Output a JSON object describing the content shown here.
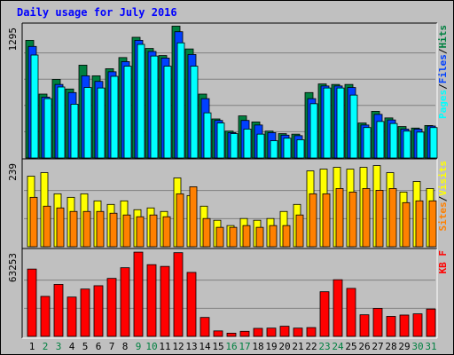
{
  "title": "Daily usage for July 2016",
  "colors": {
    "hits": "#008040",
    "files": "#0040ff",
    "pages": "#00ffff",
    "visits": "#ffff00",
    "sites": "#ff8000",
    "kbytes": "#ff0000",
    "day_label": "#000000",
    "weekend_label": "#008040"
  },
  "chart_data": [
    {
      "type": "bar",
      "name": "hits-files-pages",
      "categories": [
        "1",
        "2",
        "3",
        "4",
        "5",
        "6",
        "7",
        "8",
        "9",
        "10",
        "11",
        "12",
        "13",
        "14",
        "15",
        "16",
        "17",
        "18",
        "19",
        "20",
        "21",
        "22",
        "23",
        "24",
        "25",
        "26",
        "27",
        "28",
        "29",
        "30",
        "31"
      ],
      "y_max_label": "1295",
      "ylim": [
        0,
        1295
      ],
      "legend": [
        {
          "key": "pages",
          "label": "Pages"
        },
        {
          "key": "sep1",
          "label": "/"
        },
        {
          "key": "files",
          "label": "Files"
        },
        {
          "key": "sep2",
          "label": "/"
        },
        {
          "key": "hits",
          "label": "Hits"
        }
      ],
      "series": [
        {
          "name": "Hits",
          "values": [
            1160,
            630,
            775,
            680,
            915,
            810,
            880,
            990,
            1190,
            1080,
            1010,
            1300,
            1075,
            630,
            385,
            265,
            415,
            355,
            265,
            240,
            235,
            645,
            730,
            725,
            725,
            345,
            460,
            395,
            310,
            295,
            320
          ]
        },
        {
          "name": "Files",
          "values": [
            1100,
            600,
            725,
            645,
            810,
            755,
            850,
            950,
            1160,
            1050,
            985,
            1245,
            1020,
            585,
            370,
            250,
            370,
            325,
            250,
            225,
            220,
            585,
            710,
            710,
            695,
            325,
            430,
            375,
            285,
            285,
            315
          ]
        },
        {
          "name": "Pages",
          "values": [
            1015,
            585,
            700,
            530,
            695,
            690,
            805,
            905,
            1120,
            1005,
            905,
            1135,
            905,
            445,
            345,
            240,
            285,
            235,
            170,
            195,
            180,
            535,
            690,
            690,
            620,
            300,
            360,
            340,
            265,
            255,
            300
          ]
        }
      ]
    },
    {
      "type": "bar",
      "name": "visits-sites",
      "categories": [
        "1",
        "2",
        "3",
        "4",
        "5",
        "6",
        "7",
        "8",
        "9",
        "10",
        "11",
        "12",
        "13",
        "14",
        "15",
        "16",
        "17",
        "18",
        "19",
        "20",
        "21",
        "22",
        "23",
        "24",
        "25",
        "26",
        "27",
        "28",
        "29",
        "30",
        "31"
      ],
      "y_max_label": "239",
      "ylim": [
        0,
        239
      ],
      "legend": [
        {
          "key": "sites",
          "label": "Sites"
        },
        {
          "key": "sep",
          "label": "/"
        },
        {
          "key": "visits",
          "label": "Visits"
        }
      ],
      "series": [
        {
          "name": "Visits",
          "values": [
            200,
            210,
            150,
            140,
            150,
            130,
            120,
            130,
            105,
            110,
            100,
            195,
            145,
            115,
            75,
            60,
            80,
            75,
            80,
            100,
            120,
            215,
            220,
            225,
            220,
            225,
            230,
            210,
            155,
            185,
            165
          ]
        },
        {
          "name": "Sites",
          "values": [
            140,
            115,
            110,
            100,
            100,
            100,
            95,
            90,
            85,
            90,
            85,
            150,
            170,
            80,
            55,
            55,
            60,
            55,
            60,
            60,
            90,
            150,
            150,
            165,
            155,
            165,
            160,
            165,
            125,
            130,
            130
          ]
        }
      ]
    },
    {
      "type": "bar",
      "name": "kbytes",
      "categories": [
        "1",
        "2",
        "3",
        "4",
        "5",
        "6",
        "7",
        "8",
        "9",
        "10",
        "11",
        "12",
        "13",
        "14",
        "15",
        "16",
        "17",
        "18",
        "19",
        "20",
        "21",
        "22",
        "23",
        "24",
        "25",
        "26",
        "27",
        "28",
        "29",
        "30",
        "31"
      ],
      "y_max_label": "63253",
      "ylim": [
        0,
        63253
      ],
      "legend": [
        {
          "key": "kbytes",
          "label": "KB F"
        }
      ],
      "series": [
        {
          "name": "KB F",
          "values": [
            50500,
            30000,
            39000,
            29500,
            35500,
            38000,
            43500,
            51500,
            63200,
            53800,
            52500,
            62800,
            48000,
            14200,
            4100,
            2400,
            3800,
            6000,
            6200,
            7600,
            6200,
            6600,
            33500,
            42500,
            36000,
            16200,
            21000,
            15000,
            16000,
            16900,
            20500
          ]
        }
      ]
    }
  ]
}
